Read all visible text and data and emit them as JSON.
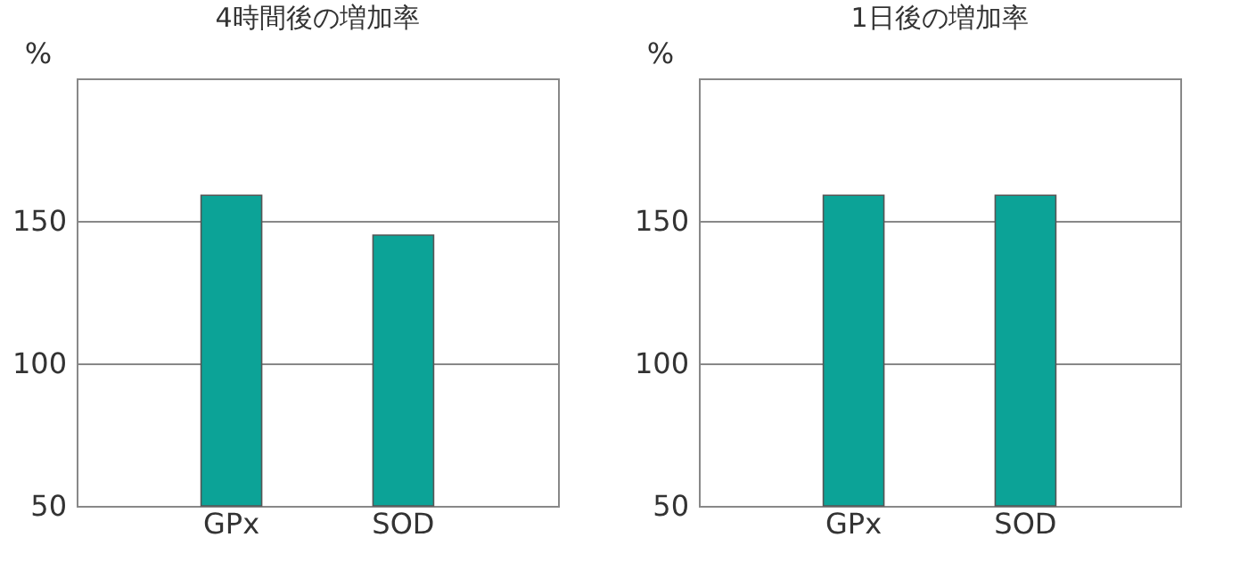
{
  "chart_data": [
    {
      "type": "bar",
      "title": "4時間後の増加率",
      "ylabel": "%",
      "categories": [
        "GPx",
        "SOD"
      ],
      "values": [
        159,
        145
      ],
      "color": "#0ca397",
      "ylim": [
        50,
        200
      ],
      "yticks": [
        50,
        100,
        150
      ],
      "grid": "y"
    },
    {
      "type": "bar",
      "title": "1日後の増加率",
      "ylabel": "%",
      "categories": [
        "GPx",
        "SOD"
      ],
      "values": [
        159,
        159
      ],
      "color": "#0ca397",
      "ylim": [
        50,
        200
      ],
      "yticks": [
        50,
        100,
        150
      ],
      "grid": "y"
    }
  ]
}
